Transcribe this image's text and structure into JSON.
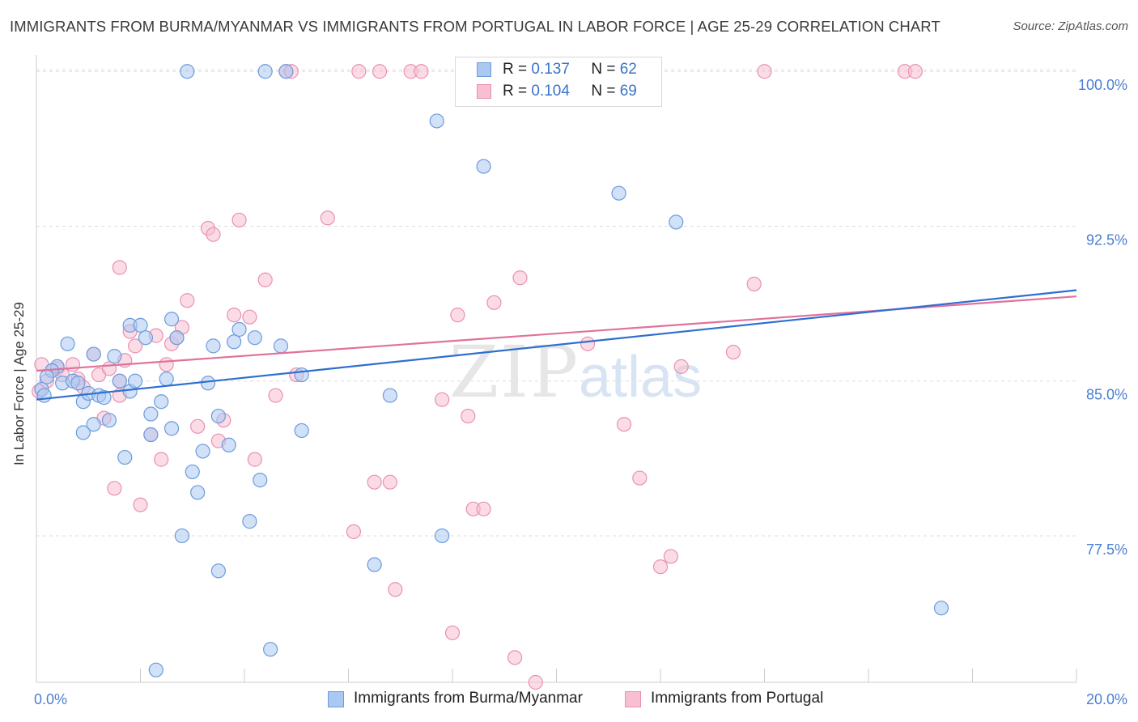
{
  "title": "IMMIGRANTS FROM BURMA/MYANMAR VS IMMIGRANTS FROM PORTUGAL IN LABOR FORCE | AGE 25-29 CORRELATION CHART",
  "source": "Source: ZipAtlas.com",
  "watermark": {
    "zip": "ZIP",
    "atlas": "atlas"
  },
  "legend": {
    "rows": [
      {
        "r_label": "R =",
        "r_value": "0.137",
        "n_label": "N =",
        "n_value": "62"
      },
      {
        "r_label": "R =",
        "r_value": "0.104",
        "n_label": "N =",
        "n_value": "69"
      }
    ]
  },
  "colors": {
    "blue_fill": "#a9c8f2",
    "blue_stroke": "#6d9bdc",
    "blue_line": "#2f6fd0",
    "pink_fill": "#f8bfd2",
    "pink_stroke": "#e991b0",
    "pink_line": "#e0729c",
    "tick_label": "#4a7fd4",
    "grid": "#dddddd"
  },
  "chart_data": {
    "type": "scatter",
    "title": "IMMIGRANTS FROM BURMA/MYANMAR VS IMMIGRANTS FROM PORTUGAL IN LABOR FORCE | AGE 25-29 CORRELATION CHART",
    "xlabel": "",
    "ylabel": "In Labor Force | Age 25-29",
    "xlim": [
      0,
      20
    ],
    "ylim": [
      70.4,
      101.5
    ],
    "x_tick_labels": [
      "0.0%",
      "20.0%"
    ],
    "y_ticks": [
      77.5,
      85.0,
      92.5,
      100.0
    ],
    "y_tick_labels": [
      "77.5%",
      "85.0%",
      "92.5%",
      "100.0%"
    ],
    "grid": true,
    "legend_position": "top-center",
    "series": [
      {
        "name": "Immigrants from Burma/Myanmar",
        "trend": [
          [
            0,
            84.1
          ],
          [
            20,
            89.4
          ]
        ],
        "points": [
          [
            0.1,
            84.6
          ],
          [
            0.4,
            85.7
          ],
          [
            0.5,
            84.9
          ],
          [
            0.6,
            86.8
          ],
          [
            0.7,
            85.0
          ],
          [
            0.8,
            84.9
          ],
          [
            0.9,
            84.0
          ],
          [
            0.9,
            82.5
          ],
          [
            1.0,
            84.4
          ],
          [
            1.1,
            82.9
          ],
          [
            1.1,
            86.3
          ],
          [
            1.2,
            84.3
          ],
          [
            1.3,
            84.2
          ],
          [
            1.4,
            83.1
          ],
          [
            1.5,
            86.2
          ],
          [
            1.6,
            85.0
          ],
          [
            1.7,
            81.3
          ],
          [
            1.8,
            84.5
          ],
          [
            1.8,
            87.7
          ],
          [
            1.9,
            85.0
          ],
          [
            2.0,
            87.7
          ],
          [
            2.1,
            87.1
          ],
          [
            2.2,
            83.4
          ],
          [
            2.2,
            82.4
          ],
          [
            2.3,
            71.0
          ],
          [
            2.4,
            84.0
          ],
          [
            2.5,
            85.1
          ],
          [
            2.6,
            82.7
          ],
          [
            2.6,
            88.0
          ],
          [
            2.7,
            87.1
          ],
          [
            2.8,
            77.5
          ],
          [
            2.9,
            100.0
          ],
          [
            3.0,
            80.6
          ],
          [
            3.1,
            79.6
          ],
          [
            3.2,
            81.6
          ],
          [
            3.3,
            84.9
          ],
          [
            3.4,
            86.7
          ],
          [
            3.5,
            83.3
          ],
          [
            3.5,
            75.8
          ],
          [
            3.7,
            81.9
          ],
          [
            3.8,
            86.9
          ],
          [
            3.9,
            87.5
          ],
          [
            4.1,
            78.2
          ],
          [
            4.2,
            87.1
          ],
          [
            4.3,
            80.2
          ],
          [
            4.4,
            100.0
          ],
          [
            4.5,
            72.0
          ],
          [
            4.7,
            86.7
          ],
          [
            4.8,
            100.0
          ],
          [
            5.1,
            85.3
          ],
          [
            5.1,
            82.6
          ],
          [
            6.5,
            76.1
          ],
          [
            6.8,
            84.3
          ],
          [
            7.7,
            97.6
          ],
          [
            7.8,
            77.5
          ],
          [
            8.6,
            95.4
          ],
          [
            11.2,
            94.1
          ],
          [
            12.3,
            92.7
          ],
          [
            17.4,
            74.0
          ],
          [
            0.15,
            84.3
          ],
          [
            0.3,
            85.5
          ],
          [
            0.2,
            85.2
          ]
        ]
      },
      {
        "name": "Immigrants from Portugal",
        "trend": [
          [
            0,
            85.5
          ],
          [
            20,
            89.1
          ]
        ],
        "points": [
          [
            0.05,
            84.5
          ],
          [
            0.1,
            85.8
          ],
          [
            0.2,
            85.0
          ],
          [
            0.4,
            85.6
          ],
          [
            0.5,
            85.3
          ],
          [
            0.7,
            85.8
          ],
          [
            0.8,
            85.1
          ],
          [
            0.9,
            84.7
          ],
          [
            1.1,
            86.3
          ],
          [
            1.2,
            85.3
          ],
          [
            1.3,
            83.2
          ],
          [
            1.4,
            85.6
          ],
          [
            1.5,
            79.8
          ],
          [
            1.6,
            85.0
          ],
          [
            1.6,
            84.3
          ],
          [
            1.6,
            90.5
          ],
          [
            1.7,
            86.0
          ],
          [
            1.8,
            87.4
          ],
          [
            1.9,
            86.7
          ],
          [
            2.0,
            79.0
          ],
          [
            2.2,
            82.4
          ],
          [
            2.3,
            87.2
          ],
          [
            2.4,
            81.2
          ],
          [
            2.5,
            85.8
          ],
          [
            2.6,
            86.8
          ],
          [
            2.7,
            87.1
          ],
          [
            2.8,
            87.6
          ],
          [
            2.9,
            88.9
          ],
          [
            3.1,
            82.8
          ],
          [
            3.3,
            92.4
          ],
          [
            3.4,
            92.1
          ],
          [
            3.5,
            82.1
          ],
          [
            3.6,
            83.1
          ],
          [
            3.8,
            88.2
          ],
          [
            3.9,
            92.8
          ],
          [
            4.1,
            88.1
          ],
          [
            4.2,
            81.2
          ],
          [
            4.4,
            89.9
          ],
          [
            4.6,
            84.3
          ],
          [
            4.8,
            100.0
          ],
          [
            4.9,
            100.0
          ],
          [
            5.0,
            85.3
          ],
          [
            5.6,
            92.9
          ],
          [
            6.1,
            77.7
          ],
          [
            6.2,
            100.0
          ],
          [
            6.5,
            80.1
          ],
          [
            6.6,
            100.0
          ],
          [
            6.8,
            80.1
          ],
          [
            6.9,
            74.9
          ],
          [
            7.2,
            100.0
          ],
          [
            7.4,
            100.0
          ],
          [
            7.8,
            84.1
          ],
          [
            8.0,
            72.8
          ],
          [
            8.1,
            88.2
          ],
          [
            8.3,
            83.3
          ],
          [
            8.4,
            78.8
          ],
          [
            8.6,
            78.8
          ],
          [
            8.8,
            88.8
          ],
          [
            9.2,
            71.6
          ],
          [
            9.3,
            90.0
          ],
          [
            9.6,
            70.4
          ],
          [
            10.6,
            86.8
          ],
          [
            11.3,
            82.9
          ],
          [
            11.6,
            80.3
          ],
          [
            12.0,
            76.0
          ],
          [
            12.2,
            76.5
          ],
          [
            12.4,
            85.7
          ],
          [
            13.4,
            86.4
          ],
          [
            13.8,
            89.7
          ]
        ],
        "top_points_x": [
          14.0,
          16.7,
          16.9
        ]
      }
    ]
  }
}
